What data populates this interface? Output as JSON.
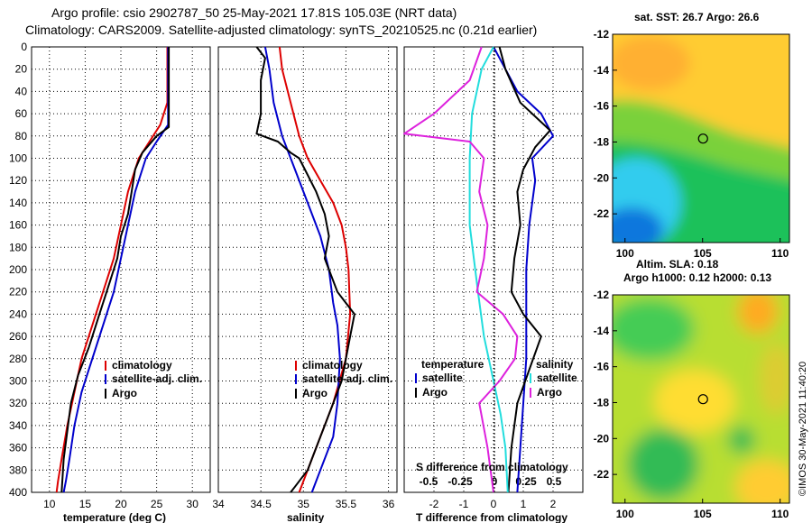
{
  "header": {
    "line1": "Argo profile: csio 2902787_50 25-May-2021 17.81S 105.03E (NRT data)",
    "line2": "Climatology: CARS2009. Satellite-adjusted climatology: synTS_20210525.nc (0.21d earlier)"
  },
  "footer": {
    "credit": "©IMOS 30-May-2021 11:40:20"
  },
  "colors": {
    "climatology": "#dd0000",
    "satellite": "#0000cc",
    "argo": "#000000",
    "sat_salinity": "#22dddd",
    "salinity_diff": "#dd22dd"
  },
  "chart_data": [
    {
      "id": "temperature",
      "type": "line",
      "xlabel": "temperature (deg C)",
      "ylabel": "",
      "xlim": [
        7.5,
        32.5
      ],
      "ylim": [
        400,
        0
      ],
      "xticks": [
        10,
        15,
        20,
        25,
        30
      ],
      "yticks": [
        0,
        20,
        40,
        60,
        80,
        100,
        120,
        140,
        160,
        180,
        200,
        220,
        240,
        260,
        280,
        300,
        320,
        340,
        360,
        380,
        400
      ],
      "legend": [
        "climatology",
        "satellite-adj. clim.",
        "Argo"
      ],
      "series": [
        {
          "name": "climatology",
          "color": "#dd0000",
          "points": [
            [
              26.5,
              0
            ],
            [
              26.5,
              50
            ],
            [
              25.5,
              70
            ],
            [
              24,
              85
            ],
            [
              22.5,
              100
            ],
            [
              21,
              130
            ],
            [
              20,
              160
            ],
            [
              19,
              190
            ],
            [
              17.5,
              220
            ],
            [
              16,
              250
            ],
            [
              14.5,
              280
            ],
            [
              13.5,
              310
            ],
            [
              12.5,
              340
            ],
            [
              11.7,
              370
            ],
            [
              11.2,
              390
            ],
            [
              11,
              400
            ]
          ]
        },
        {
          "name": "satellite-adj. clim.",
          "color": "#0000cc",
          "points": [
            [
              26.6,
              0
            ],
            [
              26.6,
              50
            ],
            [
              26.6,
              70
            ],
            [
              25,
              85
            ],
            [
              23.5,
              100
            ],
            [
              22,
              130
            ],
            [
              21,
              160
            ],
            [
              20,
              190
            ],
            [
              19,
              220
            ],
            [
              17.5,
              250
            ],
            [
              16,
              280
            ],
            [
              14.5,
              310
            ],
            [
              13.5,
              340
            ],
            [
              12.8,
              370
            ],
            [
              12.3,
              390
            ],
            [
              12,
              400
            ]
          ]
        },
        {
          "name": "Argo",
          "color": "#000000",
          "points": [
            [
              26.7,
              0
            ],
            [
              26.7,
              50
            ],
            [
              26.7,
              72
            ],
            [
              25,
              80
            ],
            [
              23,
              95
            ],
            [
              22,
              110
            ],
            [
              21.5,
              130
            ],
            [
              21,
              150
            ],
            [
              20,
              170
            ],
            [
              19.5,
              190
            ],
            [
              18.5,
              210
            ],
            [
              17,
              240
            ],
            [
              15.5,
              270
            ],
            [
              14,
              295
            ],
            [
              13,
              320
            ],
            [
              12.5,
              345
            ],
            [
              12,
              370
            ],
            [
              11.7,
              400
            ]
          ]
        }
      ]
    },
    {
      "id": "salinity",
      "type": "line",
      "xlabel": "salinity",
      "ylabel": "",
      "xlim": [
        34,
        36.1
      ],
      "ylim": [
        400,
        0
      ],
      "xticks": [
        34,
        34.5,
        35,
        35.5,
        36
      ],
      "xticklabels": [
        "34",
        "34.5",
        "35",
        "35.5",
        "36"
      ],
      "legend": [
        "climatology",
        "satellite-adj. clim.",
        "Argo"
      ],
      "series": [
        {
          "name": "climatology",
          "color": "#dd0000",
          "points": [
            [
              34.72,
              0
            ],
            [
              34.75,
              20
            ],
            [
              34.85,
              50
            ],
            [
              34.95,
              80
            ],
            [
              35.05,
              100
            ],
            [
              35.2,
              120
            ],
            [
              35.35,
              140
            ],
            [
              35.45,
              160
            ],
            [
              35.5,
              180
            ],
            [
              35.53,
              200
            ],
            [
              35.55,
              240
            ],
            [
              35.5,
              280
            ],
            [
              35.35,
              320
            ],
            [
              35.2,
              350
            ],
            [
              35.05,
              380
            ],
            [
              34.95,
              400
            ]
          ]
        },
        {
          "name": "satellite-adj. clim.",
          "color": "#0000cc",
          "points": [
            [
              34.55,
              0
            ],
            [
              34.6,
              20
            ],
            [
              34.65,
              50
            ],
            [
              34.75,
              80
            ],
            [
              34.9,
              110
            ],
            [
              35.05,
              140
            ],
            [
              35.2,
              170
            ],
            [
              35.3,
              200
            ],
            [
              35.35,
              230
            ],
            [
              35.4,
              250
            ],
            [
              35.43,
              280
            ],
            [
              35.4,
              320
            ],
            [
              35.35,
              350
            ],
            [
              35.2,
              380
            ],
            [
              35.1,
              400
            ]
          ]
        },
        {
          "name": "Argo",
          "color": "#000000",
          "points": [
            [
              34.45,
              0
            ],
            [
              34.55,
              10
            ],
            [
              34.5,
              30
            ],
            [
              34.5,
              60
            ],
            [
              34.45,
              78
            ],
            [
              34.7,
              85
            ],
            [
              34.85,
              95
            ],
            [
              34.95,
              100
            ],
            [
              35.05,
              115
            ],
            [
              35.15,
              130
            ],
            [
              35.25,
              150
            ],
            [
              35.3,
              170
            ],
            [
              35.25,
              190
            ],
            [
              35.35,
              210
            ],
            [
              35.4,
              220
            ],
            [
              35.5,
              230
            ],
            [
              35.6,
              240
            ],
            [
              35.55,
              260
            ],
            [
              35.5,
              280
            ],
            [
              35.45,
              300
            ],
            [
              35.35,
              320
            ],
            [
              35.25,
              340
            ],
            [
              35.15,
              360
            ],
            [
              35.05,
              380
            ],
            [
              34.9,
              395
            ],
            [
              34.85,
              400
            ]
          ]
        }
      ]
    },
    {
      "id": "differences",
      "type": "line",
      "xlabel": "T difference from climatology",
      "title": "S difference from climatology",
      "xlim": [
        -3,
        3
      ],
      "ylim": [
        400,
        0
      ],
      "xticks": [
        -2,
        -1,
        0,
        1,
        2
      ],
      "xticklabels": [
        "-2",
        "-1",
        "0",
        "1",
        "2"
      ],
      "top_xticks": [
        "-0.5",
        "-0.25",
        "0",
        "0.25",
        "0.5"
      ],
      "top_xlim": [
        -0.75,
        0.75
      ],
      "legend": {
        "temperature": {
          "heading": "temperature",
          "items": [
            "satellite",
            "Argo"
          ]
        },
        "salinity": {
          "heading": "salinity",
          "items": [
            "satellite",
            "Argo"
          ]
        }
      },
      "series": [
        {
          "name": "temperature satellite",
          "color": "#0000cc",
          "scale": "T",
          "points": [
            [
              0,
              0
            ],
            [
              0.2,
              10
            ],
            [
              0.8,
              40
            ],
            [
              1.6,
              60
            ],
            [
              2,
              80
            ],
            [
              1.3,
              100
            ],
            [
              1.4,
              120
            ],
            [
              1.3,
              140
            ],
            [
              1.2,
              160
            ],
            [
              1.1,
              200
            ],
            [
              1.1,
              240
            ],
            [
              1.1,
              280
            ],
            [
              1,
              320
            ],
            [
              0.9,
              360
            ],
            [
              0.8,
              400
            ]
          ]
        },
        {
          "name": "temperature Argo",
          "color": "#000000",
          "scale": "T",
          "points": [
            [
              0.2,
              0
            ],
            [
              0.4,
              20
            ],
            [
              0.9,
              50
            ],
            [
              1.9,
              75
            ],
            [
              1.4,
              90
            ],
            [
              1,
              110
            ],
            [
              0.8,
              130
            ],
            [
              0.9,
              160
            ],
            [
              0.7,
              190
            ],
            [
              0.6,
              220
            ],
            [
              1,
              240
            ],
            [
              1.6,
              260
            ],
            [
              1.2,
              290
            ],
            [
              0.8,
              320
            ],
            [
              0.6,
              360
            ],
            [
              0.5,
              400
            ]
          ]
        },
        {
          "name": "salinity satellite",
          "color": "#22dddd",
          "scale": "S",
          "points": [
            [
              0,
              0
            ],
            [
              -0.1,
              20
            ],
            [
              -0.18,
              60
            ],
            [
              -0.2,
              100
            ],
            [
              -0.2,
              160
            ],
            [
              -0.13,
              220
            ],
            [
              -0.08,
              260
            ],
            [
              0,
              300
            ],
            [
              0.06,
              330
            ],
            [
              0.1,
              360
            ],
            [
              0.12,
              400
            ]
          ]
        },
        {
          "name": "salinity Argo",
          "color": "#dd22dd",
          "scale": "S",
          "points": [
            [
              -0.1,
              0
            ],
            [
              -0.2,
              30
            ],
            [
              -0.5,
              60
            ],
            [
              -0.75,
              78
            ],
            [
              -0.2,
              85
            ],
            [
              -0.08,
              100
            ],
            [
              -0.12,
              130
            ],
            [
              -0.05,
              160
            ],
            [
              -0.08,
              190
            ],
            [
              -0.14,
              220
            ],
            [
              0.08,
              240
            ],
            [
              0.2,
              260
            ],
            [
              0.18,
              280
            ],
            [
              0.05,
              300
            ],
            [
              -0.12,
              320
            ],
            [
              -0.05,
              360
            ],
            [
              0,
              400
            ]
          ]
        }
      ]
    },
    {
      "id": "sst_map",
      "type": "heatmap",
      "title": "sat. SST: 26.7 Argo: 26.6",
      "xticks": [
        100,
        105,
        110
      ],
      "yticks": [
        -12,
        -14,
        -16,
        -18,
        -20,
        -22
      ],
      "xlim": [
        99.2,
        110.6
      ],
      "ylim": [
        -23.6,
        -12
      ],
      "marker": [
        105.03,
        -17.81
      ]
    },
    {
      "id": "sla_map",
      "type": "heatmap",
      "title": "Altim. SLA: 0.18",
      "subtitle": "Argo h1000: 0.12 h2000: 0.13",
      "xticks": [
        100,
        105,
        110
      ],
      "yticks": [
        -12,
        -14,
        -16,
        -18,
        -20,
        -22
      ],
      "xlim": [
        99.2,
        110.6
      ],
      "ylim": [
        -23.6,
        -12
      ],
      "marker": [
        105.03,
        -17.81
      ]
    }
  ]
}
